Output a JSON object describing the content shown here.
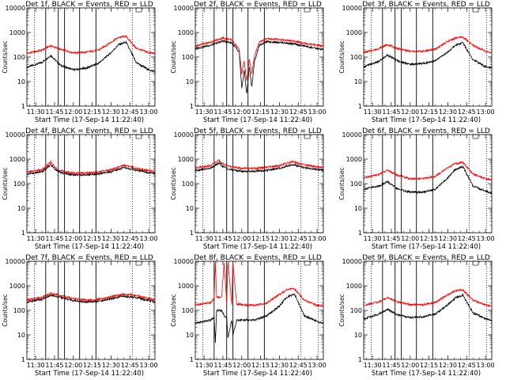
{
  "chart_data": [
    {
      "type": "line",
      "title": "Det 1f, BLACK = Events, RED = LLD",
      "ylabel": "Counts/sec",
      "xlabel": "Start Time (17-Sep-14 11:22:40)",
      "yscale": "log",
      "ylim": [
        1,
        10000
      ],
      "xlim": [
        "11:23",
        "13:05"
      ],
      "xticks": [
        "11:30",
        "11:45",
        "12:00",
        "12:15",
        "12:30",
        "12:45",
        "13:00"
      ],
      "yticks": [
        "1",
        "10",
        "100",
        "1000",
        "10000"
      ],
      "attenuator_lines": [
        "11:38",
        "11:48",
        "11:53",
        "12:05",
        "12:18"
      ],
      "saa_dotted": [
        "11:29",
        "12:47",
        "13:01"
      ],
      "series": [
        {
          "color": "#000000",
          "x": [
            "11:23",
            "11:35",
            "11:42",
            "11:50",
            "12:00",
            "12:10",
            "12:20",
            "12:30",
            "12:36",
            "12:42",
            "12:50",
            "13:00",
            "13:05"
          ],
          "y": [
            38,
            60,
            115,
            45,
            30,
            35,
            55,
            150,
            320,
            400,
            60,
            30,
            25
          ]
        },
        {
          "color": "#ff0000",
          "x": [
            "11:23",
            "11:35",
            "11:42",
            "11:50",
            "12:00",
            "12:10",
            "12:20",
            "12:30",
            "12:36",
            "12:42",
            "12:50",
            "13:00",
            "13:05"
          ],
          "y": [
            140,
            190,
            290,
            200,
            150,
            155,
            190,
            400,
            620,
            700,
            230,
            150,
            140
          ]
        }
      ]
    },
    {
      "type": "line",
      "title": "Det 2f, BLACK = Events, RED = LLD",
      "ylabel": "Counts/sec",
      "xlabel": "Start Time (17-Sep-14 11:22:40)",
      "yscale": "log",
      "ylim": [
        1,
        10000
      ],
      "xlim": [
        "11:23",
        "13:05"
      ],
      "xticks": [
        "11:30",
        "11:45",
        "12:00",
        "12:15",
        "12:30",
        "12:45",
        "13:00"
      ],
      "yticks": [
        "1",
        "10",
        "100",
        "1000",
        "10000"
      ],
      "attenuator_lines": [
        "11:38",
        "11:48",
        "11:53",
        "12:05",
        "12:18"
      ],
      "saa_dotted": [
        "11:29",
        "12:47",
        "13:01"
      ],
      "series": [
        {
          "color": "#000000",
          "x": [
            "11:23",
            "11:35",
            "11:45",
            "11:52",
            "11:58",
            "12:00",
            "12:02",
            "12:04",
            "12:06",
            "12:08",
            "12:10",
            "12:14",
            "12:20",
            "12:30",
            "12:40",
            "12:50",
            "13:00",
            "13:05"
          ],
          "y": [
            220,
            300,
            450,
            380,
            150,
            5,
            30,
            3,
            40,
            6,
            60,
            300,
            420,
            400,
            350,
            280,
            220,
            200
          ]
        },
        {
          "color": "#ff0000",
          "x": [
            "11:23",
            "11:35",
            "11:45",
            "11:52",
            "11:58",
            "12:00",
            "12:02",
            "12:04",
            "12:06",
            "12:08",
            "12:10",
            "12:14",
            "12:20",
            "12:30",
            "12:40",
            "12:50",
            "13:00",
            "13:05"
          ],
          "y": [
            280,
            400,
            600,
            500,
            200,
            20,
            70,
            10,
            80,
            20,
            100,
            420,
            550,
            520,
            450,
            370,
            300,
            280
          ]
        }
      ]
    },
    {
      "type": "line",
      "title": "Det 3f, BLACK = Events, RED = LLD",
      "ylabel": "Counts/sec",
      "xlabel": "Start Time (17-Sep-14 11:22:40)",
      "yscale": "log",
      "ylim": [
        1,
        10000
      ],
      "xlim": [
        "11:23",
        "13:05"
      ],
      "xticks": [
        "11:30",
        "11:45",
        "12:00",
        "12:15",
        "12:30",
        "12:45",
        "13:00"
      ],
      "yticks": [
        "1",
        "10",
        "100",
        "1000",
        "10000"
      ],
      "attenuator_lines": [
        "11:38",
        "11:48",
        "11:53",
        "12:05",
        "12:18"
      ],
      "saa_dotted": [
        "11:29",
        "12:47",
        "13:01"
      ],
      "series": [
        {
          "color": "#000000",
          "x": [
            "11:23",
            "11:35",
            "11:42",
            "11:50",
            "12:00",
            "12:10",
            "12:20",
            "12:30",
            "12:36",
            "12:42",
            "12:50",
            "13:00",
            "13:05"
          ],
          "y": [
            40,
            65,
            120,
            70,
            50,
            55,
            70,
            160,
            300,
            380,
            80,
            40,
            35
          ]
        },
        {
          "color": "#ff0000",
          "x": [
            "11:23",
            "11:35",
            "11:42",
            "11:50",
            "12:00",
            "12:10",
            "12:20",
            "12:30",
            "12:36",
            "12:42",
            "12:50",
            "13:00",
            "13:05"
          ],
          "y": [
            150,
            220,
            320,
            220,
            170,
            170,
            210,
            430,
            600,
            650,
            300,
            170,
            150
          ]
        }
      ]
    },
    {
      "type": "line",
      "title": "Det 4f, BLACK = Events, RED = LLD",
      "ylabel": "Counts/sec",
      "xlabel": "Start Time (17-Sep-14 11:22:40)",
      "yscale": "log",
      "ylim": [
        1,
        10000
      ],
      "xlim": [
        "11:23",
        "13:05"
      ],
      "xticks": [
        "11:30",
        "11:45",
        "12:00",
        "12:15",
        "12:30",
        "12:45",
        "13:00"
      ],
      "yticks": [
        "1",
        "10",
        "100",
        "1000",
        "10000"
      ],
      "attenuator_lines": [
        "11:38",
        "11:48",
        "11:53",
        "12:05",
        "12:18"
      ],
      "saa_dotted": [
        "11:29",
        "12:47",
        "13:01"
      ],
      "series": [
        {
          "color": "#000000",
          "x": [
            "11:23",
            "11:35",
            "11:42",
            "11:45",
            "11:50",
            "12:00",
            "12:10",
            "12:20",
            "12:30",
            "12:40",
            "12:50",
            "13:00",
            "13:05"
          ],
          "y": [
            250,
            300,
            600,
            400,
            280,
            230,
            230,
            250,
            300,
            450,
            350,
            280,
            260
          ]
        },
        {
          "color": "#ff0000",
          "x": [
            "11:23",
            "11:35",
            "11:42",
            "11:45",
            "11:50",
            "12:00",
            "12:10",
            "12:20",
            "12:30",
            "12:40",
            "12:50",
            "13:00",
            "13:05"
          ],
          "y": [
            300,
            360,
            750,
            480,
            330,
            270,
            270,
            300,
            370,
            560,
            430,
            340,
            320
          ]
        }
      ]
    },
    {
      "type": "line",
      "title": "Det 5f, BLACK = Events, RED = LLD",
      "ylabel": "Counts/sec",
      "xlabel": "Start Time (17-Sep-14 11:22:40)",
      "yscale": "log",
      "ylim": [
        1,
        10000
      ],
      "xlim": [
        "11:23",
        "13:05"
      ],
      "xticks": [
        "11:30",
        "11:45",
        "12:00",
        "12:15",
        "12:30",
        "12:45",
        "13:00"
      ],
      "yticks": [
        "1",
        "10",
        "100",
        "1000",
        "10000"
      ],
      "attenuator_lines": [
        "11:38",
        "11:48",
        "11:53",
        "12:05",
        "12:18"
      ],
      "saa_dotted": [
        "11:29",
        "12:47",
        "13:01"
      ],
      "series": [
        {
          "color": "#000000",
          "x": [
            "11:23",
            "11:35",
            "11:42",
            "11:45",
            "11:50",
            "12:00",
            "12:10",
            "12:20",
            "12:30",
            "12:40",
            "12:50",
            "13:00",
            "13:05"
          ],
          "y": [
            350,
            420,
            700,
            500,
            380,
            320,
            320,
            350,
            420,
            600,
            450,
            380,
            350
          ]
        },
        {
          "color": "#ff0000",
          "x": [
            "11:23",
            "11:35",
            "11:42",
            "11:45",
            "11:50",
            "12:00",
            "12:10",
            "12:20",
            "12:30",
            "12:40",
            "12:50",
            "13:00",
            "13:05"
          ],
          "y": [
            450,
            540,
            900,
            650,
            500,
            420,
            420,
            460,
            550,
            780,
            580,
            490,
            450
          ]
        }
      ]
    },
    {
      "type": "line",
      "title": "Det 6f, BLACK = Events, RED = LLD",
      "ylabel": "Counts/sec",
      "xlabel": "Start Time (17-Sep-14 11:22:40)",
      "yscale": "log",
      "ylim": [
        1,
        10000
      ],
      "xlim": [
        "11:23",
        "13:05"
      ],
      "xticks": [
        "11:30",
        "11:45",
        "12:00",
        "12:15",
        "12:30",
        "12:45",
        "13:00"
      ],
      "yticks": [
        "1",
        "10",
        "100",
        "1000",
        "10000"
      ],
      "attenuator_lines": [
        "11:38",
        "11:48",
        "11:53",
        "12:05",
        "12:18"
      ],
      "saa_dotted": [
        "11:29",
        "12:47",
        "13:01"
      ],
      "series": [
        {
          "color": "#000000",
          "x": [
            "11:23",
            "11:35",
            "11:42",
            "11:50",
            "12:00",
            "12:10",
            "12:20",
            "12:30",
            "12:36",
            "12:42",
            "12:50",
            "13:00",
            "13:05"
          ],
          "y": [
            60,
            80,
            120,
            60,
            45,
            45,
            60,
            170,
            380,
            500,
            80,
            50,
            40
          ]
        },
        {
          "color": "#ff0000",
          "x": [
            "11:23",
            "11:35",
            "11:42",
            "11:50",
            "12:00",
            "12:10",
            "12:20",
            "12:30",
            "12:36",
            "12:42",
            "12:50",
            "13:00",
            "13:05"
          ],
          "y": [
            170,
            240,
            350,
            220,
            160,
            160,
            200,
            450,
            650,
            720,
            250,
            160,
            140
          ]
        }
      ]
    },
    {
      "type": "line",
      "title": "Det 7f, BLACK = Events, RED = LLD",
      "ylabel": "Counts/sec",
      "xlabel": "Start Time (17-Sep-14 11:22:40)",
      "yscale": "log",
      "ylim": [
        1,
        10000
      ],
      "xlim": [
        "11:23",
        "13:05"
      ],
      "xticks": [
        "11:30",
        "11:45",
        "12:00",
        "12:15",
        "12:30",
        "12:45",
        "13:00"
      ],
      "yticks": [
        "1",
        "10",
        "100",
        "1000",
        "10000"
      ],
      "attenuator_lines": [
        "11:38",
        "11:48",
        "11:53",
        "12:05",
        "12:18"
      ],
      "saa_dotted": [
        "11:29",
        "12:47",
        "13:01"
      ],
      "series": [
        {
          "color": "#000000",
          "x": [
            "11:23",
            "11:35",
            "11:42",
            "11:50",
            "12:00",
            "12:10",
            "12:20",
            "12:30",
            "12:40",
            "12:50",
            "13:00",
            "13:05"
          ],
          "y": [
            220,
            280,
            420,
            330,
            250,
            220,
            230,
            300,
            380,
            330,
            250,
            220
          ]
        },
        {
          "color": "#ff0000",
          "x": [
            "11:23",
            "11:35",
            "11:42",
            "11:50",
            "12:00",
            "12:10",
            "12:20",
            "12:30",
            "12:40",
            "12:50",
            "13:00",
            "13:05"
          ],
          "y": [
            260,
            330,
            500,
            400,
            300,
            260,
            280,
            360,
            460,
            400,
            300,
            260
          ]
        }
      ]
    },
    {
      "type": "line",
      "title": "Det 8f, BLACK = Events, RED = LLD",
      "ylabel": "Counts/sec",
      "xlabel": "Start Time (17-Sep-14 11:22:40)",
      "yscale": "log",
      "ylim": [
        1,
        10000
      ],
      "xlim": [
        "11:23",
        "13:05"
      ],
      "xticks": [
        "11:30",
        "11:45",
        "12:00",
        "12:15",
        "12:30",
        "12:45",
        "13:00"
      ],
      "yticks": [
        "1",
        "10",
        "100",
        "1000",
        "10000"
      ],
      "attenuator_lines": [
        "11:38",
        "11:48",
        "11:53",
        "12:05",
        "12:18"
      ],
      "saa_dotted": [
        "11:29",
        "12:47",
        "13:01"
      ],
      "series": [
        {
          "color": "#000000",
          "x": [
            "11:23",
            "11:35",
            "11:38",
            "11:39",
            "11:40",
            "11:44",
            "11:46",
            "11:48",
            "11:49",
            "11:52",
            "11:53",
            "11:56",
            "12:00",
            "12:10",
            "12:20",
            "12:30",
            "12:36",
            "12:42",
            "12:50",
            "13:00",
            "13:05"
          ],
          "y": [
            30,
            40,
            50,
            5,
            100,
            100,
            60,
            50,
            8,
            40,
            10,
            40,
            40,
            40,
            60,
            150,
            350,
            450,
            60,
            35,
            30
          ]
        },
        {
          "color": "#ff0000",
          "x": [
            "11:23",
            "11:35",
            "11:38",
            "11:39",
            "11:40",
            "11:44",
            "11:46",
            "11:48",
            "11:49",
            "11:52",
            "11:53",
            "11:56",
            "12:00",
            "12:10",
            "12:20",
            "12:30",
            "12:36",
            "12:42",
            "12:50",
            "13:00",
            "13:05"
          ],
          "y": [
            170,
            200,
            300,
            9000,
            350,
            350,
            9000,
            200,
            9000,
            180,
            9000,
            180,
            170,
            160,
            200,
            450,
            700,
            750,
            250,
            160,
            150
          ]
        }
      ]
    },
    {
      "type": "line",
      "title": "Det 9f, BLACK = Events, RED = LLD",
      "ylabel": "Counts/sec",
      "xlabel": "Start Time (17-Sep-14 11:22:40)",
      "yscale": "log",
      "ylim": [
        1,
        10000
      ],
      "xlim": [
        "11:23",
        "13:05"
      ],
      "xticks": [
        "11:30",
        "11:45",
        "12:00",
        "12:15",
        "12:30",
        "12:45",
        "13:00"
      ],
      "yticks": [
        "1",
        "10",
        "100",
        "1000",
        "10000"
      ],
      "attenuator_lines": [
        "11:38",
        "11:48",
        "11:53",
        "12:05",
        "12:18"
      ],
      "saa_dotted": [
        "11:29",
        "12:47",
        "13:01"
      ],
      "series": [
        {
          "color": "#000000",
          "x": [
            "11:23",
            "11:35",
            "11:42",
            "11:50",
            "12:00",
            "12:10",
            "12:20",
            "12:30",
            "12:36",
            "12:42",
            "12:50",
            "13:00",
            "13:05"
          ],
          "y": [
            45,
            70,
            110,
            65,
            50,
            55,
            70,
            170,
            320,
            420,
            80,
            45,
            40
          ]
        },
        {
          "color": "#ff0000",
          "x": [
            "11:23",
            "11:35",
            "11:42",
            "11:50",
            "12:00",
            "12:10",
            "12:20",
            "12:30",
            "12:36",
            "12:42",
            "12:50",
            "13:00",
            "13:05"
          ],
          "y": [
            160,
            220,
            330,
            220,
            170,
            170,
            210,
            430,
            620,
            680,
            260,
            170,
            150
          ]
        }
      ]
    }
  ]
}
